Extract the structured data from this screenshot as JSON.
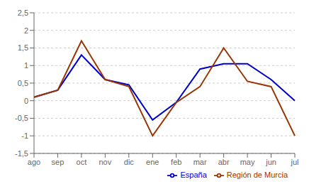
{
  "chart_data": {
    "type": "line",
    "categories": [
      "ago",
      "sep",
      "oct",
      "nov",
      "dic",
      "ene",
      "feb",
      "mar",
      "abr",
      "may",
      "jun",
      "jul"
    ],
    "series": [
      {
        "name": "España",
        "color": "#0000cc",
        "values": [
          0.1,
          0.3,
          1.3,
          0.6,
          0.45,
          -0.55,
          -0.05,
          0.9,
          1.05,
          1.05,
          0.6,
          0.0
        ]
      },
      {
        "name": "Región de Murcia",
        "color": "#993300",
        "values": [
          0.1,
          0.3,
          1.7,
          0.6,
          0.4,
          -1.0,
          -0.05,
          0.4,
          1.5,
          0.55,
          0.4,
          -1.0
        ]
      }
    ],
    "ylim": [
      -1.5,
      2.5
    ],
    "yticks": [
      {
        "value": -1.5,
        "label": "-1,5"
      },
      -1,
      {
        "value": -0.5,
        "label": "-0,5"
      },
      0,
      {
        "value": 0.5,
        "label": "0,5"
      },
      1,
      {
        "value": 1.5,
        "label": "1,5"
      },
      2,
      {
        "value": 2.5,
        "label": "2,5"
      }
    ],
    "grid": true,
    "legend": "lower right"
  }
}
